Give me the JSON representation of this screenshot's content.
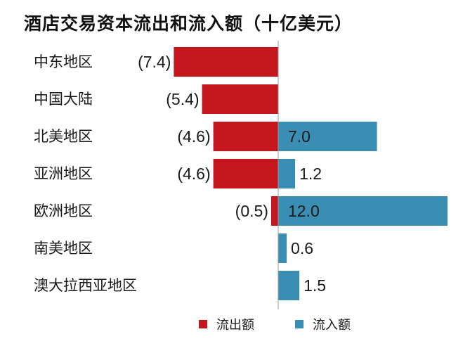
{
  "chart_data": {
    "type": "bar",
    "title": "酒店交易资本流出和流入额（十亿美元）",
    "categories": [
      "中东地区",
      "中国大陆",
      "北美地区",
      "亚洲地区",
      "欧洲地区",
      "南美地区",
      "澳大拉西亚地区"
    ],
    "series": [
      {
        "name": "流出额",
        "values": [
          -7.4,
          -5.4,
          -4.6,
          -4.6,
          -0.5,
          null,
          null
        ],
        "labels": [
          "(7.4)",
          "(5.4)",
          "(4.6)",
          "(4.6)",
          "(0.5)",
          "",
          ""
        ],
        "color": "#c5161d"
      },
      {
        "name": "流入额",
        "values": [
          null,
          null,
          7.0,
          1.2,
          12.0,
          0.6,
          1.5
        ],
        "labels": [
          "",
          "",
          "7.0",
          "1.2",
          "12.0",
          "0.6",
          "1.5"
        ],
        "color": "#3a8db3"
      }
    ],
    "xlim": [
      -7.4,
      12.0
    ],
    "legend_position": "bottom"
  }
}
